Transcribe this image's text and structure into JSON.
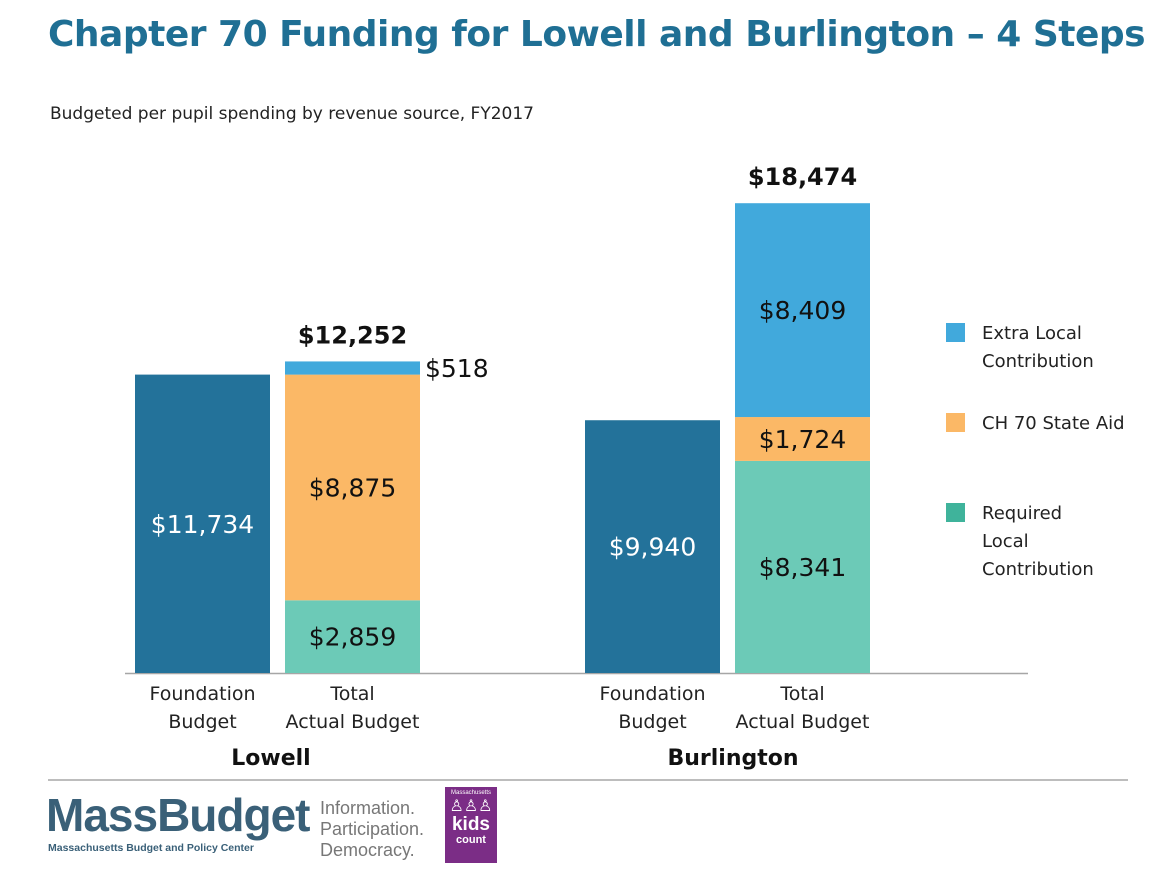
{
  "header": {
    "title": "Chapter 70 Funding for Lowell and Burlington – 4 Steps",
    "subtitle": "Budgeted per pupil spending by revenue source, FY2017"
  },
  "colors": {
    "foundation": "#23729a",
    "extra_local": "#41a9dc",
    "ch70": "#fbb866",
    "required_local": "#6ccab7",
    "legend_required_local": "#3fb39b",
    "title": "#1f6f94"
  },
  "legend": {
    "items": [
      {
        "label": "Extra Local Contribution",
        "color": "#41a9dc"
      },
      {
        "label": "CH 70 State Aid",
        "color": "#fbb866"
      },
      {
        "label": "Required Local Contribution",
        "color": "#3fb39b"
      }
    ]
  },
  "chart_data": {
    "type": "bar",
    "stacked": true,
    "ylim": [
      0,
      20000
    ],
    "groups": [
      {
        "name": "Lowell",
        "bars": [
          {
            "category": [
              "Foundation",
              "Budget"
            ],
            "segments": [
              {
                "series": "Foundation Budget",
                "value": 11734,
                "label": "$11,734"
              }
            ]
          },
          {
            "category": [
              "Total",
              "Actual Budget"
            ],
            "total_label": "$12,252",
            "segments": [
              {
                "series": "Required Local Contribution",
                "value": 2859,
                "label": "$2,859"
              },
              {
                "series": "CH 70 State Aid",
                "value": 8875,
                "label": "$8,875"
              },
              {
                "series": "Extra Local Contribution",
                "value": 518,
                "label": "$518",
                "label_outside": true
              }
            ]
          }
        ]
      },
      {
        "name": "Burlington",
        "bars": [
          {
            "category": [
              "Foundation",
              "Budget"
            ],
            "segments": [
              {
                "series": "Foundation Budget",
                "value": 9940,
                "label": "$9,940"
              }
            ]
          },
          {
            "category": [
              "Total",
              "Actual Budget"
            ],
            "total_label": "$18,474",
            "segments": [
              {
                "series": "Required Local Contribution",
                "value": 8341,
                "label": "$8,341"
              },
              {
                "series": "CH 70 State Aid",
                "value": 1724,
                "label": "$1,724"
              },
              {
                "series": "Extra Local Contribution",
                "value": 8409,
                "label": "$8,409"
              }
            ]
          }
        ]
      }
    ]
  },
  "footer": {
    "logo_name": "MassBudget",
    "logo_subtitle": "Massachusetts Budget and Policy Center",
    "tagline": [
      "Information.",
      "Participation.",
      "Democracy."
    ],
    "kids_count_top": "Massachusetts",
    "kids_count_word": "kids",
    "kids_count_bottom": "count"
  }
}
